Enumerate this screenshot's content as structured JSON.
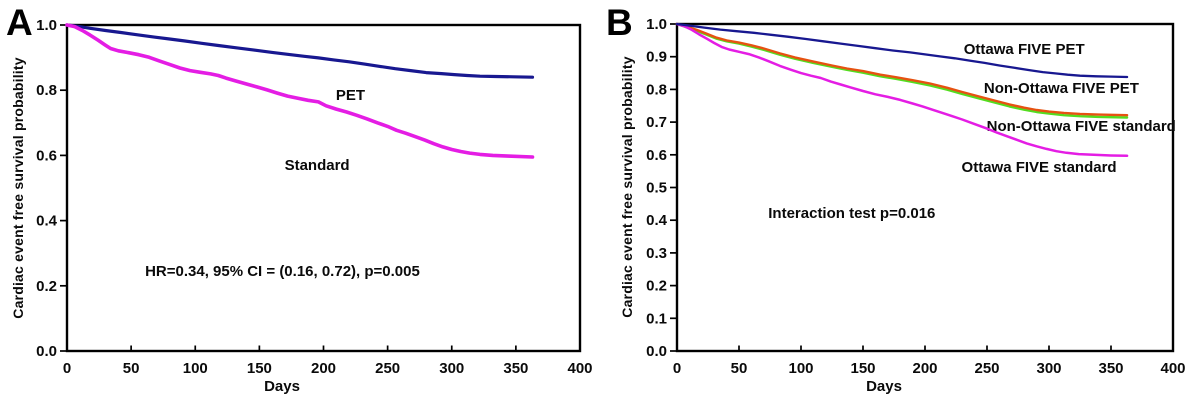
{
  "figure": {
    "background": "#ffffff",
    "axis_color": "#000000",
    "text_color": "#0a0a0a"
  },
  "chart_data": [
    {
      "type": "line",
      "panel_label": "A",
      "title": "",
      "xlabel": "Days",
      "ylabel": "Cardiac event free survival probability",
      "xlim": [
        0,
        400
      ],
      "ylim": [
        0.0,
        1.0
      ],
      "xticks": [
        0,
        50,
        100,
        150,
        200,
        250,
        300,
        350,
        400
      ],
      "yticks": [
        0.0,
        0.2,
        0.4,
        0.6,
        0.8,
        1.0
      ],
      "ytick_decimals": 1,
      "grid": false,
      "legend_position": "inline-labels",
      "annotation": {
        "text": "HR=0.34, 95% CI = (0.16, 0.72), p=0.005",
        "x": 168,
        "y": 0.245
      },
      "series": [
        {
          "name": "PET",
          "color": "#181890",
          "width": 3.2,
          "label": {
            "text": "PET",
            "x": 221,
            "y": 0.785
          },
          "points": [
            [
              0,
              1.0
            ],
            [
              8,
              0.996
            ],
            [
              18,
              0.99
            ],
            [
              30,
              0.983
            ],
            [
              42,
              0.977
            ],
            [
              55,
              0.97
            ],
            [
              68,
              0.963
            ],
            [
              80,
              0.957
            ],
            [
              92,
              0.951
            ],
            [
              105,
              0.944
            ],
            [
              118,
              0.937
            ],
            [
              132,
              0.93
            ],
            [
              146,
              0.923
            ],
            [
              160,
              0.916
            ],
            [
              172,
              0.91
            ],
            [
              185,
              0.904
            ],
            [
              196,
              0.899
            ],
            [
              208,
              0.893
            ],
            [
              220,
              0.887
            ],
            [
              232,
              0.88
            ],
            [
              244,
              0.873
            ],
            [
              256,
              0.866
            ],
            [
              268,
              0.86
            ],
            [
              280,
              0.854
            ],
            [
              292,
              0.851
            ],
            [
              302,
              0.848
            ],
            [
              312,
              0.845
            ],
            [
              322,
              0.843
            ],
            [
              334,
              0.842
            ],
            [
              348,
              0.841
            ],
            [
              363,
              0.84
            ]
          ]
        },
        {
          "name": "Standard",
          "color": "#e41de4",
          "width": 3.6,
          "label": {
            "text": "Standard",
            "x": 195,
            "y": 0.571
          },
          "points": [
            [
              0,
              1.0
            ],
            [
              6,
              0.995
            ],
            [
              12,
              0.983
            ],
            [
              18,
              0.969
            ],
            [
              24,
              0.954
            ],
            [
              30,
              0.938
            ],
            [
              34,
              0.928
            ],
            [
              40,
              0.921
            ],
            [
              48,
              0.915
            ],
            [
              56,
              0.909
            ],
            [
              64,
              0.901
            ],
            [
              72,
              0.89
            ],
            [
              80,
              0.879
            ],
            [
              88,
              0.868
            ],
            [
              96,
              0.86
            ],
            [
              104,
              0.855
            ],
            [
              112,
              0.85
            ],
            [
              118,
              0.845
            ],
            [
              124,
              0.837
            ],
            [
              132,
              0.828
            ],
            [
              140,
              0.819
            ],
            [
              148,
              0.81
            ],
            [
              156,
              0.801
            ],
            [
              164,
              0.791
            ],
            [
              172,
              0.782
            ],
            [
              180,
              0.775
            ],
            [
              188,
              0.769
            ],
            [
              196,
              0.764
            ],
            [
              202,
              0.752
            ],
            [
              210,
              0.742
            ],
            [
              218,
              0.733
            ],
            [
              226,
              0.723
            ],
            [
              234,
              0.712
            ],
            [
              242,
              0.7
            ],
            [
              250,
              0.689
            ],
            [
              257,
              0.677
            ],
            [
              264,
              0.668
            ],
            [
              272,
              0.657
            ],
            [
              279,
              0.647
            ],
            [
              286,
              0.636
            ],
            [
              293,
              0.626
            ],
            [
              300,
              0.618
            ],
            [
              307,
              0.612
            ],
            [
              314,
              0.607
            ],
            [
              322,
              0.603
            ],
            [
              332,
              0.6
            ],
            [
              344,
              0.598
            ],
            [
              363,
              0.595
            ]
          ]
        }
      ]
    },
    {
      "type": "line",
      "panel_label": "B",
      "title": "",
      "xlabel": "Days",
      "ylabel": "Cardiac event free survival probability",
      "xlim": [
        0,
        400
      ],
      "ylim": [
        0.0,
        1.0
      ],
      "xticks": [
        0,
        50,
        100,
        150,
        200,
        250,
        300,
        350,
        400
      ],
      "yticks": [
        0.0,
        0.1,
        0.2,
        0.3,
        0.4,
        0.5,
        0.6,
        0.7,
        0.8,
        0.9,
        1.0
      ],
      "ytick_decimals": 1,
      "grid": false,
      "legend_position": "inline-labels",
      "annotation": {
        "text": "Interaction test p=0.016",
        "x": 141,
        "y": 0.422
      },
      "series": [
        {
          "name": "Non-Ottawa FIVE standard",
          "color": "#54dc20",
          "width": 2.4,
          "label": {
            "text": "Non-Ottawa FIVE standard",
            "x": 326,
            "y": 0.688
          },
          "points": [
            [
              0,
              1.0
            ],
            [
              8,
              0.99
            ],
            [
              16,
              0.979
            ],
            [
              24,
              0.967
            ],
            [
              32,
              0.955
            ],
            [
              40,
              0.947
            ],
            [
              50,
              0.94
            ],
            [
              60,
              0.931
            ],
            [
              70,
              0.921
            ],
            [
              83,
              0.906
            ],
            [
              95,
              0.894
            ],
            [
              110,
              0.881
            ],
            [
              125,
              0.869
            ],
            [
              137,
              0.86
            ],
            [
              150,
              0.851
            ],
            [
              164,
              0.84
            ],
            [
              177,
              0.832
            ],
            [
              190,
              0.823
            ],
            [
              204,
              0.812
            ],
            [
              218,
              0.799
            ],
            [
              230,
              0.786
            ],
            [
              244,
              0.772
            ],
            [
              256,
              0.76
            ],
            [
              268,
              0.748
            ],
            [
              280,
              0.738
            ],
            [
              290,
              0.731
            ],
            [
              300,
              0.726
            ],
            [
              312,
              0.721
            ],
            [
              325,
              0.718
            ],
            [
              340,
              0.716
            ],
            [
              363,
              0.714
            ]
          ]
        },
        {
          "name": "Non-Ottawa FIVE PET",
          "color": "#e65211",
          "width": 2.4,
          "label": {
            "text": "Non-Ottawa FIVE PET",
            "x": 310,
            "y": 0.804
          },
          "points": [
            [
              0,
              1.0
            ],
            [
              8,
              0.992
            ],
            [
              16,
              0.982
            ],
            [
              24,
              0.97
            ],
            [
              32,
              0.958
            ],
            [
              40,
              0.95
            ],
            [
              50,
              0.943
            ],
            [
              60,
              0.935
            ],
            [
              70,
              0.925
            ],
            [
              83,
              0.91
            ],
            [
              95,
              0.898
            ],
            [
              110,
              0.885
            ],
            [
              125,
              0.873
            ],
            [
              137,
              0.864
            ],
            [
              150,
              0.856
            ],
            [
              164,
              0.845
            ],
            [
              177,
              0.837
            ],
            [
              190,
              0.828
            ],
            [
              204,
              0.818
            ],
            [
              218,
              0.805
            ],
            [
              230,
              0.792
            ],
            [
              244,
              0.778
            ],
            [
              256,
              0.766
            ],
            [
              268,
              0.754
            ],
            [
              280,
              0.744
            ],
            [
              290,
              0.737
            ],
            [
              300,
              0.732
            ],
            [
              312,
              0.728
            ],
            [
              325,
              0.725
            ],
            [
              340,
              0.723
            ],
            [
              363,
              0.721
            ]
          ]
        },
        {
          "name": "Ottawa FIVE standard",
          "color": "#e41de4",
          "width": 2.5,
          "label": {
            "text": "Ottawa FIVE standard",
            "x": 292,
            "y": 0.563
          },
          "points": [
            [
              0,
              1.0
            ],
            [
              6,
              0.993
            ],
            [
              12,
              0.982
            ],
            [
              18,
              0.968
            ],
            [
              24,
              0.955
            ],
            [
              30,
              0.942
            ],
            [
              36,
              0.93
            ],
            [
              42,
              0.922
            ],
            [
              50,
              0.915
            ],
            [
              58,
              0.908
            ],
            [
              66,
              0.898
            ],
            [
              74,
              0.886
            ],
            [
              83,
              0.872
            ],
            [
              92,
              0.86
            ],
            [
              100,
              0.85
            ],
            [
              108,
              0.842
            ],
            [
              116,
              0.835
            ],
            [
              124,
              0.824
            ],
            [
              132,
              0.815
            ],
            [
              140,
              0.806
            ],
            [
              150,
              0.795
            ],
            [
              160,
              0.785
            ],
            [
              170,
              0.777
            ],
            [
              180,
              0.768
            ],
            [
              190,
              0.757
            ],
            [
              198,
              0.748
            ],
            [
              206,
              0.738
            ],
            [
              214,
              0.728
            ],
            [
              222,
              0.718
            ],
            [
              230,
              0.708
            ],
            [
              240,
              0.694
            ],
            [
              250,
              0.68
            ],
            [
              258,
              0.668
            ],
            [
              266,
              0.657
            ],
            [
              274,
              0.646
            ],
            [
              282,
              0.635
            ],
            [
              290,
              0.626
            ],
            [
              298,
              0.618
            ],
            [
              306,
              0.611
            ],
            [
              314,
              0.606
            ],
            [
              324,
              0.602
            ],
            [
              336,
              0.6
            ],
            [
              350,
              0.598
            ],
            [
              363,
              0.597
            ]
          ]
        },
        {
          "name": "Ottawa FIVE PET",
          "color": "#181890",
          "width": 2.3,
          "label": {
            "text": "Ottawa FIVE PET",
            "x": 280,
            "y": 0.924
          },
          "points": [
            [
              0,
              1.0
            ],
            [
              10,
              0.995
            ],
            [
              22,
              0.989
            ],
            [
              35,
              0.983
            ],
            [
              48,
              0.978
            ],
            [
              62,
              0.973
            ],
            [
              76,
              0.967
            ],
            [
              90,
              0.961
            ],
            [
              104,
              0.954
            ],
            [
              118,
              0.947
            ],
            [
              132,
              0.94
            ],
            [
              146,
              0.933
            ],
            [
              160,
              0.926
            ],
            [
              174,
              0.919
            ],
            [
              188,
              0.913
            ],
            [
              200,
              0.907
            ],
            [
              212,
              0.901
            ],
            [
              224,
              0.895
            ],
            [
              236,
              0.888
            ],
            [
              248,
              0.881
            ],
            [
              260,
              0.873
            ],
            [
              272,
              0.866
            ],
            [
              284,
              0.859
            ],
            [
              295,
              0.853
            ],
            [
              305,
              0.849
            ],
            [
              315,
              0.845
            ],
            [
              325,
              0.842
            ],
            [
              338,
              0.84
            ],
            [
              350,
              0.839
            ],
            [
              363,
              0.838
            ]
          ]
        }
      ]
    }
  ]
}
